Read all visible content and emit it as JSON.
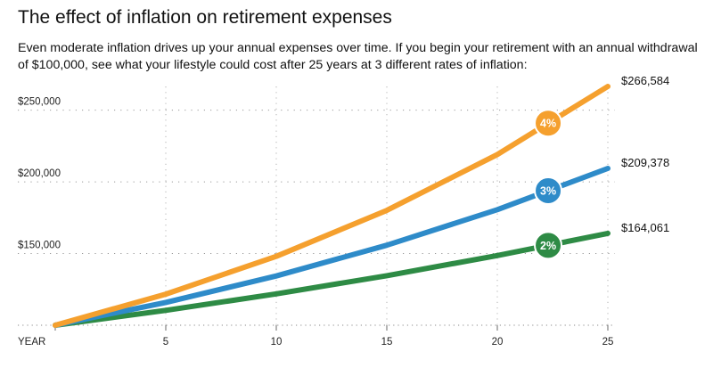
{
  "title": "The effect of inflation on retirement expenses",
  "subtitle": "Even moderate inflation drives up your annual expenses over time. If you begin your retirement with an annual withdrawal of $100,000, see what your lifestyle could cost after 25 years at 3 different rates of inflation:",
  "chart_data": {
    "type": "line",
    "xlabel": "YEAR",
    "ylabel": "",
    "x": [
      0,
      5,
      10,
      15,
      20,
      25
    ],
    "x_ticks": [
      "5",
      "10",
      "15",
      "20",
      "25"
    ],
    "x_tick_values": [
      5,
      10,
      15,
      20,
      25
    ],
    "y_ticks": [
      "$150,000",
      "$200,000",
      "$250,000"
    ],
    "y_tick_values": [
      150000,
      200000,
      250000
    ],
    "xlim": [
      0,
      25
    ],
    "ylim": [
      100000,
      266584
    ],
    "grid": true,
    "series": [
      {
        "name": "4%",
        "color": "#F5A02E",
        "values": [
          100000,
          121665,
          148024,
          180094,
          219112,
          266584
        ],
        "end_label": "$266,584",
        "badge_x": 22.3
      },
      {
        "name": "3%",
        "color": "#2E8BC9",
        "values": [
          100000,
          115927,
          134392,
          155797,
          180611,
          209378
        ],
        "end_label": "$209,378",
        "badge_x": 22.3
      },
      {
        "name": "2%",
        "color": "#2E8B45",
        "values": [
          100000,
          110408,
          121899,
          134587,
          148595,
          164061
        ],
        "end_label": "$164,061",
        "badge_x": 22.3
      }
    ]
  }
}
